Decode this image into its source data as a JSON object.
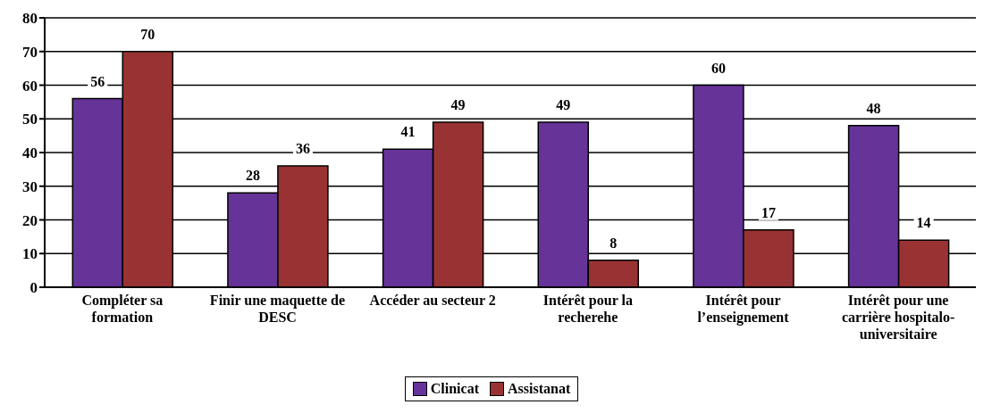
{
  "chart_data": {
    "type": "bar",
    "categories": [
      "Compléter sa formation",
      "Finir une maquette de DESC",
      "Accéder au secteur 2",
      "Intérêt pour la recherehe",
      "Intérêt pour l’enseignement",
      "Intérêt pour une carrière hospitalo-universitaire"
    ],
    "series": [
      {
        "name": "Clinicat",
        "color": "#663399",
        "values": [
          56,
          28,
          41,
          49,
          60,
          48
        ]
      },
      {
        "name": "Assistanat",
        "color": "#993333",
        "values": [
          70,
          36,
          49,
          8,
          17,
          14
        ]
      }
    ],
    "ylim": [
      0,
      80
    ],
    "yticks": [
      0,
      10,
      20,
      30,
      40,
      50,
      60,
      70,
      80
    ],
    "grid": "y",
    "legend": "bottom",
    "data_labels": true
  }
}
